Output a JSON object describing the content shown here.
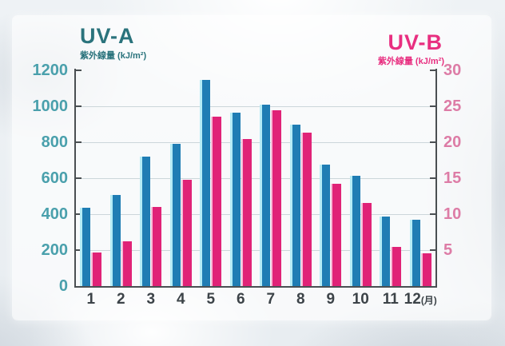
{
  "titles": {
    "left_series": "UV-A",
    "right_series": "UV-B",
    "left_unit": "紫外線量 (kJ/m²)",
    "right_unit": "紫外線量 (kJ/m²)"
  },
  "colors": {
    "uva_text": "#2a737c",
    "uvb_text": "#e82f80",
    "left_axis_labels": "#4aa0ac",
    "right_axis_labels": "#dd7ca6",
    "x_axis_labels": "#3c4348",
    "bar_blue": "#1f7db4",
    "bar_blue_highlight": "#b5ecf6",
    "bar_pink": "#e02277",
    "bar_pink_highlight": "#f7b9d6",
    "axis_line": "#4a4f52",
    "gridline": "#ccd6da"
  },
  "chart_data": {
    "type": "bar",
    "title": "Monthly UV-A and UV-B radiation",
    "categories": [
      "1",
      "2",
      "3",
      "4",
      "5",
      "6",
      "7",
      "8",
      "9",
      "10",
      "11",
      "12"
    ],
    "x_suffix": "(月)",
    "series": [
      {
        "name": "UV-A",
        "axis": "left",
        "ylabel": "紫外線量 (kJ/m²)",
        "values": [
          435,
          505,
          720,
          790,
          1145,
          965,
          1010,
          900,
          675,
          615,
          385,
          370
        ]
      },
      {
        "name": "UV-B",
        "axis": "right",
        "ylabel": "紫外線量 (kJ/m²)",
        "values": [
          4.7,
          6.2,
          11.0,
          14.8,
          23.6,
          20.4,
          24.5,
          21.3,
          14.2,
          11.6,
          5.5,
          4.6
        ]
      }
    ],
    "left_axis": {
      "ticks": [
        0,
        200,
        400,
        600,
        800,
        1000,
        1200
      ],
      "min": 0,
      "max": 1200
    },
    "right_axis": {
      "ticks": [
        5,
        10,
        15,
        20,
        25,
        30
      ],
      "min": 0,
      "max": 30
    },
    "gridlines_at_left_values": [
      200,
      400,
      600,
      800,
      1000
    ],
    "grid": true,
    "legend_position": "top-corners"
  }
}
